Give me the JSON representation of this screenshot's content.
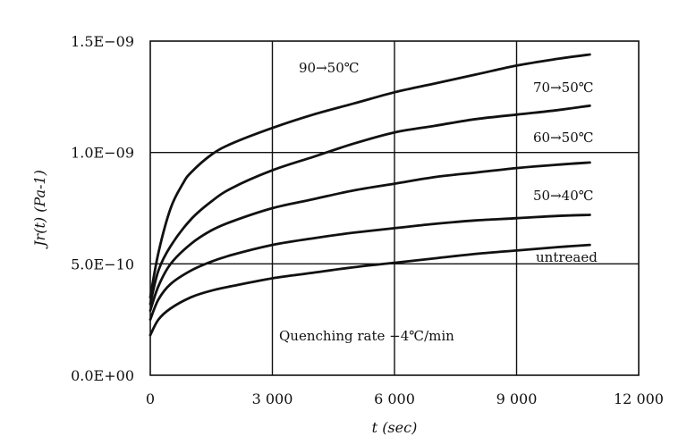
{
  "chart_data": {
    "type": "line",
    "title": "",
    "xlabel": "t (sec)",
    "ylabel": "Jr(t) (Pa-1)",
    "xlim": [
      0,
      12000
    ],
    "ylim": [
      0,
      1.5e-09
    ],
    "grid": true,
    "x_ticks": [
      0,
      3000,
      6000,
      9000,
      12000
    ],
    "x_tick_labels": [
      "0",
      "3 000",
      "6 000",
      "9 000",
      "12 000"
    ],
    "y_ticks": [
      0,
      5e-10,
      1e-09,
      1.5e-09
    ],
    "y_tick_labels": [
      "0.0E+00",
      "5.0E−10",
      "1.0E−09",
      "1.5E−09"
    ],
    "annotation": "Quenching rate −4℃/min",
    "series": [
      {
        "name": "90→50℃",
        "x": [
          0,
          200,
          500,
          800,
          1000,
          1500,
          2000,
          3000,
          4000,
          5000,
          6000,
          7000,
          8000,
          9000,
          10000,
          10800
        ],
        "y": [
          3.5e-10,
          5.5e-10,
          7.5e-10,
          8.6e-10,
          9.1e-10,
          9.9e-10,
          1.04e-09,
          1.11e-09,
          1.17e-09,
          1.22e-09,
          1.27e-09,
          1.31e-09,
          1.35e-09,
          1.39e-09,
          1.42e-09,
          1.44e-09
        ]
      },
      {
        "name": "70→50℃",
        "x": [
          0,
          200,
          500,
          1000,
          1500,
          2000,
          3000,
          4000,
          5000,
          6000,
          7000,
          8000,
          9000,
          10000,
          10800
        ],
        "y": [
          3.2e-10,
          4.7e-10,
          5.8e-10,
          7e-10,
          7.8e-10,
          8.4e-10,
          9.2e-10,
          9.8e-10,
          1.04e-09,
          1.09e-09,
          1.12e-09,
          1.15e-09,
          1.17e-09,
          1.19e-09,
          1.21e-09
        ]
      },
      {
        "name": "60→50℃",
        "x": [
          0,
          200,
          500,
          1000,
          1500,
          2000,
          3000,
          4000,
          5000,
          6000,
          7000,
          8000,
          9000,
          10000,
          10800
        ],
        "y": [
          2.9e-10,
          4e-10,
          5e-10,
          5.9e-10,
          6.5e-10,
          6.9e-10,
          7.5e-10,
          7.9e-10,
          8.3e-10,
          8.6e-10,
          8.9e-10,
          9.1e-10,
          9.3e-10,
          9.45e-10,
          9.55e-10
        ]
      },
      {
        "name": "50→40℃",
        "x": [
          0,
          200,
          500,
          1000,
          1500,
          2000,
          3000,
          4000,
          5000,
          6000,
          7000,
          8000,
          9000,
          10000,
          10800
        ],
        "y": [
          2.5e-10,
          3.4e-10,
          4.1e-10,
          4.7e-10,
          5.1e-10,
          5.4e-10,
          5.85e-10,
          6.15e-10,
          6.4e-10,
          6.6e-10,
          6.8e-10,
          6.95e-10,
          7.05e-10,
          7.15e-10,
          7.2e-10
        ]
      },
      {
        "name": "untreaed",
        "x": [
          0,
          200,
          500,
          1000,
          1500,
          2000,
          3000,
          4000,
          5000,
          6000,
          7000,
          8000,
          9000,
          10000,
          10800
        ],
        "y": [
          1.8e-10,
          2.5e-10,
          3e-10,
          3.5e-10,
          3.8e-10,
          4e-10,
          4.35e-10,
          4.6e-10,
          4.85e-10,
          5.05e-10,
          5.25e-10,
          5.45e-10,
          5.6e-10,
          5.75e-10,
          5.85e-10
        ]
      }
    ]
  }
}
